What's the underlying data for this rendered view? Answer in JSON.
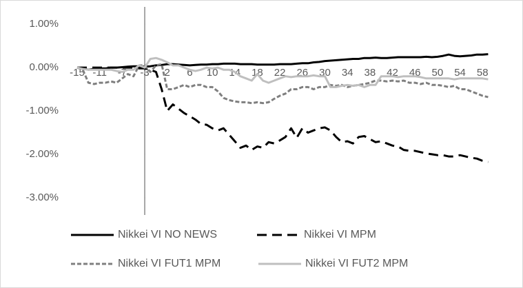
{
  "chart_data": {
    "type": "line",
    "categories": [
      "-15",
      null,
      null,
      null,
      "-11",
      null,
      null,
      null,
      "-7",
      null,
      null,
      null,
      "-3",
      null,
      null,
      null,
      "2",
      null,
      null,
      null,
      "6",
      null,
      null,
      null,
      "10",
      null,
      null,
      null,
      "14",
      null,
      null,
      null,
      "18",
      null,
      null,
      null,
      "22",
      null,
      null,
      null,
      "26",
      null,
      null,
      null,
      "30",
      null,
      null,
      null,
      "34",
      null,
      null,
      null,
      "38",
      null,
      null,
      null,
      "42",
      null,
      null,
      null,
      "46",
      null,
      null,
      null,
      "50",
      null,
      null,
      null,
      "54",
      null,
      null,
      null,
      "58",
      null
    ],
    "ylim": [
      -3.4,
      1.4
    ],
    "yticks": [
      {
        "value": 1,
        "label": "1.00%"
      },
      {
        "value": 0,
        "label": "0.00%"
      },
      {
        "value": -1,
        "label": "-1.00%"
      },
      {
        "value": -2,
        "label": "-2.00%"
      },
      {
        "value": -3,
        "label": "-3.00%"
      }
    ],
    "grid": false,
    "legend": "bottom",
    "series": [
      {
        "name": "Nikkei VI NO NEWS",
        "color": "#000000",
        "line_style": "solid",
        "values": [
          0,
          -0.02,
          -0.05,
          -0.03,
          -0.02,
          -0.02,
          0,
          0,
          0.01,
          0.02,
          0.03,
          0.03,
          0.02,
          0.03,
          0.05,
          0.06,
          0.08,
          0.08,
          0.07,
          0.06,
          0.05,
          0.06,
          0.07,
          0.07,
          0.08,
          0.08,
          0.09,
          0.09,
          0.09,
          0.08,
          0.08,
          0.08,
          0.07,
          0.07,
          0.07,
          0.07,
          0.08,
          0.08,
          0.08,
          0.09,
          0.1,
          0.1,
          0.12,
          0.13,
          0.15,
          0.16,
          0.17,
          0.18,
          0.19,
          0.2,
          0.2,
          0.22,
          0.22,
          0.23,
          0.22,
          0.22,
          0.23,
          0.24,
          0.24,
          0.24,
          0.24,
          0.24,
          0.25,
          0.24,
          0.25,
          0.27,
          0.3,
          0.27,
          0.26,
          0.27,
          0.28,
          0.3,
          0.3,
          0.31
        ]
      },
      {
        "name": "Nikkei VI MPM",
        "color": "#000000",
        "line_style": "dash",
        "values": [
          0,
          0,
          0,
          0,
          0,
          0,
          0,
          0,
          0,
          0,
          0,
          -0.02,
          -0.02,
          -0.05,
          -0.1,
          -0.5,
          -1.0,
          -0.85,
          -0.95,
          -1.05,
          -1.12,
          -1.2,
          -1.3,
          -1.32,
          -1.4,
          -1.45,
          -1.4,
          -1.55,
          -1.7,
          -1.85,
          -1.8,
          -1.9,
          -1.82,
          -1.85,
          -1.72,
          -1.75,
          -1.68,
          -1.6,
          -1.4,
          -1.62,
          -1.4,
          -1.5,
          -1.45,
          -1.4,
          -1.38,
          -1.45,
          -1.6,
          -1.72,
          -1.7,
          -1.75,
          -1.6,
          -1.58,
          -1.65,
          -1.72,
          -1.7,
          -1.75,
          -1.8,
          -1.82,
          -1.9,
          -1.92,
          -1.92,
          -1.95,
          -1.98,
          -2.0,
          -2.02,
          -2.02,
          -2.05,
          -2.05,
          -2.02,
          -2.05,
          -2.08,
          -2.1,
          -2.15,
          -2.18
        ]
      },
      {
        "name": "Nikkei VI FUT1 MPM",
        "color": "#7f7f7f",
        "line_style": "short-dash",
        "values": [
          0,
          -0.05,
          -0.35,
          -0.38,
          -0.35,
          -0.35,
          -0.32,
          -0.35,
          -0.25,
          -0.15,
          -0.2,
          0.05,
          0.05,
          -0.1,
          0.05,
          0.08,
          -0.5,
          -0.5,
          -0.45,
          -0.4,
          -0.45,
          -0.4,
          -0.4,
          -0.45,
          -0.45,
          -0.55,
          -0.7,
          -0.75,
          -0.78,
          -0.8,
          -0.8,
          -0.82,
          -0.8,
          -0.82,
          -0.8,
          -0.72,
          -0.65,
          -0.6,
          -0.5,
          -0.5,
          -0.45,
          -0.45,
          -0.5,
          -0.45,
          -0.45,
          -0.4,
          -0.42,
          -0.4,
          -0.45,
          -0.42,
          -0.4,
          -0.38,
          -0.35,
          -0.3,
          -0.3,
          -0.32,
          -0.3,
          -0.32,
          -0.3,
          -0.35,
          -0.35,
          -0.38,
          -0.35,
          -0.4,
          -0.4,
          -0.42,
          -0.45,
          -0.42,
          -0.5,
          -0.5,
          -0.55,
          -0.6,
          -0.65,
          -0.68
        ]
      },
      {
        "name": "Nikkei VI FUT2 MPM",
        "color": "#bfbfbf",
        "line_style": "solid",
        "values": [
          0,
          -0.03,
          -0.05,
          -0.05,
          -0.05,
          -0.05,
          -0.05,
          -0.08,
          -0.1,
          -0.05,
          -0.05,
          0.05,
          0,
          0.2,
          0.22,
          0.18,
          0.12,
          0.05,
          0.05,
          0,
          -0.05,
          -0.08,
          -0.05,
          0,
          -0.02,
          0,
          -0.05,
          -0.05,
          -0.1,
          -0.2,
          -0.25,
          -0.3,
          -0.15,
          -0.3,
          -0.35,
          -0.3,
          -0.25,
          -0.2,
          -0.22,
          -0.2,
          -0.2,
          -0.2,
          -0.18,
          -0.2,
          -0.2,
          -0.45,
          -0.45,
          -0.42,
          -0.4,
          -0.42,
          -0.4,
          -0.45,
          -0.4,
          -0.4,
          -0.2,
          -0.2,
          -0.2,
          -0.22,
          -0.2,
          -0.2,
          -0.2,
          -0.22,
          -0.25,
          -0.25,
          -0.25,
          -0.25,
          -0.25,
          -0.27,
          -0.25,
          -0.25,
          -0.25,
          -0.25,
          -0.25,
          -0.27
        ]
      }
    ]
  }
}
